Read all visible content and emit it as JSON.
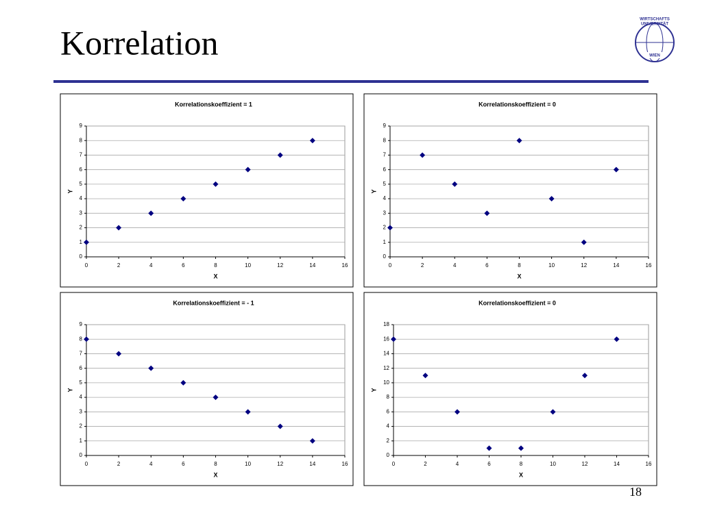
{
  "title": "Korrelation",
  "page_number": "18",
  "logo": {
    "top": "WIRTSCHAFTS",
    "middle": "UNIVERSITÄT",
    "bottom": "WIEN"
  },
  "chart_data": [
    {
      "type": "scatter",
      "title": "Korrelationskoeffizient = 1",
      "x_label": "X",
      "y_label": "Y",
      "x": [
        0,
        2,
        4,
        6,
        8,
        10,
        12,
        14
      ],
      "values": [
        1,
        2,
        3,
        4,
        5,
        6,
        7,
        8
      ],
      "color": "#000080",
      "xlim": [
        0,
        16
      ],
      "xticks": [
        0,
        2,
        4,
        6,
        8,
        10,
        12,
        14,
        16
      ],
      "ylim": [
        0,
        9
      ],
      "yticks": [
        0,
        1,
        2,
        3,
        4,
        5,
        6,
        7,
        8,
        9
      ],
      "grid": true
    },
    {
      "type": "scatter",
      "title": "Korrelationskoeffizient = 0",
      "x_label": "X",
      "y_label": "Y",
      "x": [
        0,
        2,
        4,
        6,
        8,
        10,
        12,
        14
      ],
      "values": [
        2,
        7,
        5,
        3,
        8,
        4,
        1,
        6
      ],
      "color": "#000080",
      "xlim": [
        0,
        16
      ],
      "xticks": [
        0,
        2,
        4,
        6,
        8,
        10,
        12,
        14,
        16
      ],
      "ylim": [
        0,
        9
      ],
      "yticks": [
        0,
        1,
        2,
        3,
        4,
        5,
        6,
        7,
        8,
        9
      ],
      "grid": true
    },
    {
      "type": "scatter",
      "title": "Korrelationskoeffizient = - 1",
      "x_label": "X",
      "y_label": "Y",
      "x": [
        0,
        2,
        4,
        6,
        8,
        10,
        12,
        14
      ],
      "values": [
        8,
        7,
        6,
        5,
        4,
        3,
        2,
        1
      ],
      "color": "#000080",
      "xlim": [
        0,
        16
      ],
      "xticks": [
        0,
        2,
        4,
        6,
        8,
        10,
        12,
        14,
        16
      ],
      "ylim": [
        0,
        9
      ],
      "yticks": [
        0,
        1,
        2,
        3,
        4,
        5,
        6,
        7,
        8,
        9
      ],
      "grid": true
    },
    {
      "type": "scatter",
      "title": "Korrelationskoeffizient = 0",
      "x_label": "X",
      "y_label": "Y",
      "x": [
        0,
        2,
        4,
        6,
        8,
        10,
        12,
        14
      ],
      "values": [
        16,
        11,
        6,
        1,
        1,
        6,
        11,
        16
      ],
      "color": "#000080",
      "xlim": [
        0,
        16
      ],
      "xticks": [
        0,
        2,
        4,
        6,
        8,
        10,
        12,
        14,
        16
      ],
      "ylim": [
        0,
        18
      ],
      "yticks": [
        0,
        2,
        4,
        6,
        8,
        10,
        12,
        14,
        16,
        18
      ],
      "grid": true
    }
  ]
}
